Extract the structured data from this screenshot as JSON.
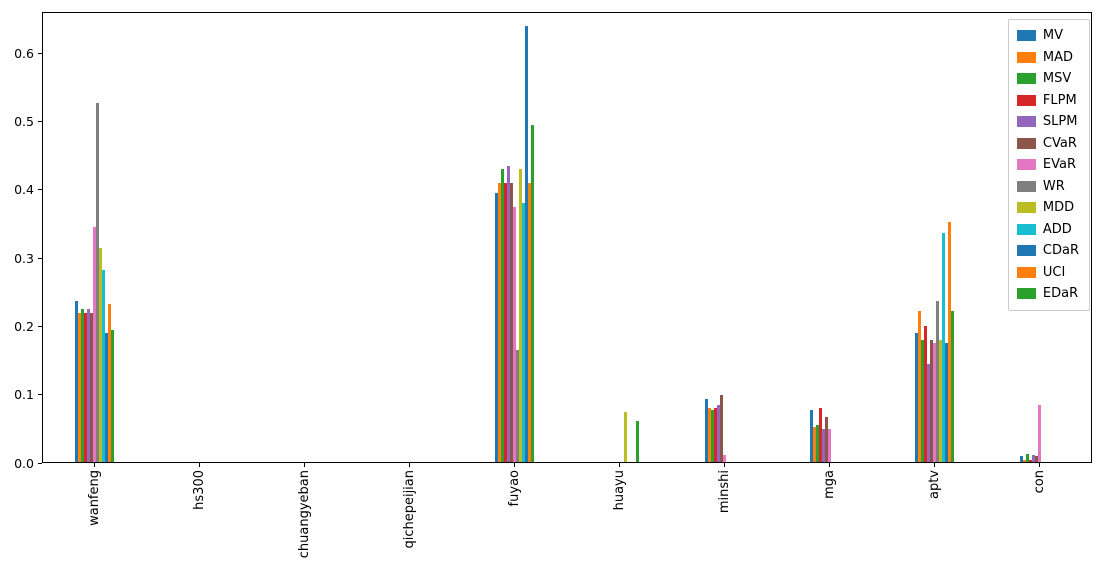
{
  "chart_data": {
    "type": "bar",
    "title": "",
    "xlabel": "",
    "ylabel": "",
    "grid": false,
    "legend_position": "upper-right",
    "ylim": [
      0,
      0.66
    ],
    "ytick_labels": [
      "0.0",
      "0.1",
      "0.2",
      "0.3",
      "0.4",
      "0.5",
      "0.6"
    ],
    "ytick_values": [
      0.0,
      0.1,
      0.2,
      0.3,
      0.4,
      0.5,
      0.6
    ],
    "categories": [
      "wanfeng",
      "hs300",
      "chuangyeban",
      "qichepeijian",
      "fuyao",
      "huayu",
      "minshi",
      "mga",
      "aptv",
      "con"
    ],
    "series": [
      {
        "name": "MV",
        "color": "#1f77b4",
        "values": [
          0.237,
          0,
          0,
          0,
          0.395,
          0,
          0.093,
          0.077,
          0.19,
          0.01
        ]
      },
      {
        "name": "MAD",
        "color": "#ff7f0e",
        "values": [
          0.22,
          0,
          0,
          0,
          0.41,
          0,
          0.08,
          0.053,
          0.222,
          0.005
        ]
      },
      {
        "name": "MSV",
        "color": "#2ca02c",
        "values": [
          0.225,
          0,
          0,
          0,
          0.43,
          0,
          0.077,
          0.055,
          0.18,
          0.013
        ]
      },
      {
        "name": "FLPM",
        "color": "#d62728",
        "values": [
          0.22,
          0,
          0,
          0,
          0.41,
          0,
          0.08,
          0.08,
          0.2,
          0.005
        ]
      },
      {
        "name": "SLPM",
        "color": "#9467bd",
        "values": [
          0.225,
          0,
          0,
          0,
          0.435,
          0,
          0.085,
          0.05,
          0.145,
          0.012
        ]
      },
      {
        "name": "CVaR",
        "color": "#8c564b",
        "values": [
          0.22,
          0,
          0,
          0,
          0.41,
          0,
          0.1,
          0.068,
          0.18,
          0.01
        ]
      },
      {
        "name": "EVaR",
        "color": "#e377c2",
        "values": [
          0.345,
          0,
          0,
          0,
          0.375,
          0,
          0.012,
          0.05,
          0.175,
          0.085
        ]
      },
      {
        "name": "WR",
        "color": "#7f7f7f",
        "values": [
          0.527,
          0,
          0,
          0,
          0.165,
          0,
          0,
          0,
          0.237,
          0
        ]
      },
      {
        "name": "MDD",
        "color": "#bcbd22",
        "values": [
          0.315,
          0,
          0,
          0,
          0.43,
          0.075,
          0,
          0,
          0.18,
          0
        ]
      },
      {
        "name": "ADD",
        "color": "#17becf",
        "values": [
          0.283,
          0,
          0,
          0,
          0.38,
          0,
          0,
          0,
          0.337,
          0
        ]
      },
      {
        "name": "CDaR",
        "color": "#1f77b4",
        "values": [
          0.19,
          0,
          0,
          0,
          0.64,
          0,
          0,
          0,
          0.175,
          0
        ]
      },
      {
        "name": "UCI",
        "color": "#ff7f0e",
        "values": [
          0.232,
          0,
          0,
          0,
          0.41,
          0,
          0,
          0,
          0.353,
          0
        ]
      },
      {
        "name": "EDaR",
        "color": "#2ca02c",
        "values": [
          0.195,
          0,
          0,
          0,
          0.495,
          0.062,
          0,
          0,
          0.223,
          0
        ]
      }
    ]
  }
}
